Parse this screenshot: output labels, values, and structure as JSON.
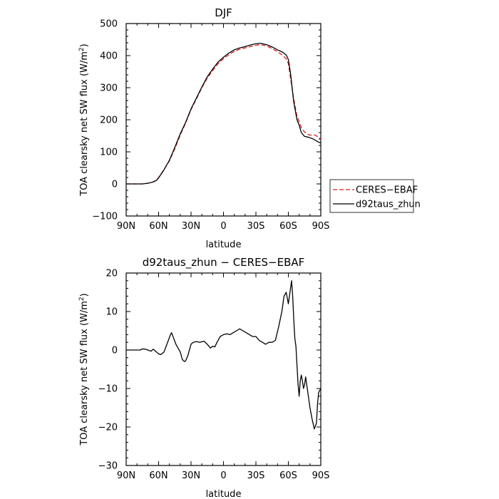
{
  "chart_data": [
    {
      "type": "line",
      "title": "DJF",
      "xlabel": "latitude",
      "ylabel": "TOA clearsky net SW flux (W/m",
      "ylabel_sup": "2",
      "ylabel_end": ")",
      "xlim": [
        90,
        -90
      ],
      "ylim": [
        -100,
        500
      ],
      "xticks": [
        90,
        60,
        30,
        0,
        -30,
        -60,
        -90
      ],
      "xtick_labels": [
        "90N",
        "60N",
        "30N",
        "0",
        "30S",
        "60S",
        "90S"
      ],
      "yticks": [
        -100,
        0,
        100,
        200,
        300,
        400,
        500
      ],
      "ytick_labels": [
        "−100",
        "0",
        "100",
        "200",
        "300",
        "400",
        "500"
      ],
      "legend_position": "outside-right",
      "series": [
        {
          "name": "CERES−EBAF",
          "color": "#d62020",
          "dash": "dashed",
          "x": [
            90,
            85,
            80,
            75,
            70,
            65,
            62,
            60,
            55,
            50,
            45,
            40,
            35,
            30,
            25,
            20,
            15,
            10,
            5,
            0,
            -5,
            -10,
            -15,
            -20,
            -25,
            -30,
            -33,
            -35,
            -40,
            -45,
            -50,
            -55,
            -58,
            -60,
            -62,
            -65,
            -68,
            -70,
            -72,
            -75,
            -78,
            -80,
            -83,
            -85,
            -88,
            -90
          ],
          "y": [
            0,
            0,
            0,
            0,
            2,
            6,
            12,
            20,
            45,
            72,
            110,
            152,
            190,
            232,
            265,
            300,
            330,
            353,
            375,
            390,
            403,
            413,
            420,
            424,
            428,
            432,
            434,
            434,
            430,
            422,
            412,
            400,
            390,
            375,
            330,
            265,
            210,
            195,
            175,
            162,
            155,
            152,
            153,
            152,
            145,
            140
          ]
        },
        {
          "name": "d92taus_zhun",
          "color": "#000000",
          "dash": "solid",
          "x": [
            90,
            85,
            80,
            75,
            70,
            65,
            62,
            60,
            55,
            50,
            45,
            40,
            35,
            30,
            25,
            20,
            15,
            10,
            5,
            0,
            -5,
            -10,
            -15,
            -20,
            -25,
            -30,
            -33,
            -35,
            -40,
            -45,
            -50,
            -55,
            -58,
            -60,
            -62,
            -65,
            -68,
            -70,
            -72,
            -75,
            -78,
            -80,
            -83,
            -85,
            -88,
            -90
          ],
          "y": [
            0,
            0,
            0,
            0,
            2,
            6,
            11,
            19,
            44,
            74,
            114,
            156,
            192,
            234,
            268,
            302,
            334,
            358,
            380,
            395,
            408,
            418,
            424,
            428,
            433,
            437,
            438,
            438,
            434,
            427,
            418,
            410,
            402,
            388,
            345,
            255,
            200,
            183,
            160,
            148,
            146,
            144,
            140,
            136,
            130,
            128
          ]
        }
      ]
    },
    {
      "type": "line",
      "title": "d92taus_zhun − CERES−EBAF",
      "xlabel": "latitude",
      "ylabel": "TOA clearsky net SW flux (W/m",
      "ylabel_sup": "2",
      "ylabel_end": ")",
      "xlim": [
        90,
        -90
      ],
      "ylim": [
        -30,
        20
      ],
      "xticks": [
        90,
        60,
        30,
        0,
        -30,
        -60,
        -90
      ],
      "xtick_labels": [
        "90N",
        "60N",
        "30N",
        "0",
        "30S",
        "60S",
        "90S"
      ],
      "yticks": [
        -30,
        -20,
        -10,
        0,
        10,
        20
      ],
      "ytick_labels": [
        "−30",
        "−20",
        "−10",
        "0",
        "10",
        "20"
      ],
      "series": [
        {
          "color": "#000000",
          "dash": "solid",
          "x": [
            90,
            85,
            80,
            77,
            75,
            72,
            70,
            67,
            65,
            62,
            60,
            58,
            55,
            53,
            51,
            49,
            48,
            46,
            44,
            42,
            40,
            38,
            36,
            35,
            33,
            31,
            30,
            28,
            25,
            22,
            18,
            15,
            12,
            10,
            8,
            6,
            3,
            0,
            -3,
            -6,
            -9,
            -12,
            -15,
            -18,
            -21,
            -24,
            -27,
            -30,
            -33,
            -36,
            -39,
            -42,
            -45,
            -48,
            -51,
            -54,
            -56,
            -58,
            -60,
            -62,
            -63,
            -64,
            -65,
            -66,
            -67,
            -68,
            -69,
            -70,
            -71,
            -72,
            -73,
            -74,
            -75,
            -76,
            -77,
            -78,
            -79,
            -80,
            -82,
            -84,
            -86,
            -87,
            -88,
            -89,
            -90
          ],
          "y": [
            0,
            0,
            0,
            0,
            0.3,
            0.2,
            0,
            -0.3,
            0.2,
            -0.5,
            -1,
            -1.2,
            -0.5,
            1,
            2.5,
            4,
            4.5,
            3,
            1.5,
            0.5,
            -0.5,
            -2.5,
            -3,
            -2.8,
            -1.5,
            0.5,
            1.5,
            2,
            2.2,
            2,
            2.3,
            1.5,
            0.5,
            1,
            0.8,
            2,
            3.5,
            4,
            4.2,
            4,
            4.5,
            5,
            5.5,
            5,
            4.5,
            4,
            3.5,
            3.5,
            2.5,
            2,
            1.5,
            2,
            2,
            2.5,
            6,
            10,
            14,
            15,
            12,
            16,
            18,
            14,
            8,
            3,
            1,
            -4,
            -9,
            -12,
            -8,
            -6.5,
            -8,
            -10,
            -9,
            -7,
            -9,
            -11,
            -13,
            -15,
            -18,
            -20.5,
            -19,
            -14,
            -11,
            -10.5,
            -10
          ]
        }
      ]
    }
  ]
}
